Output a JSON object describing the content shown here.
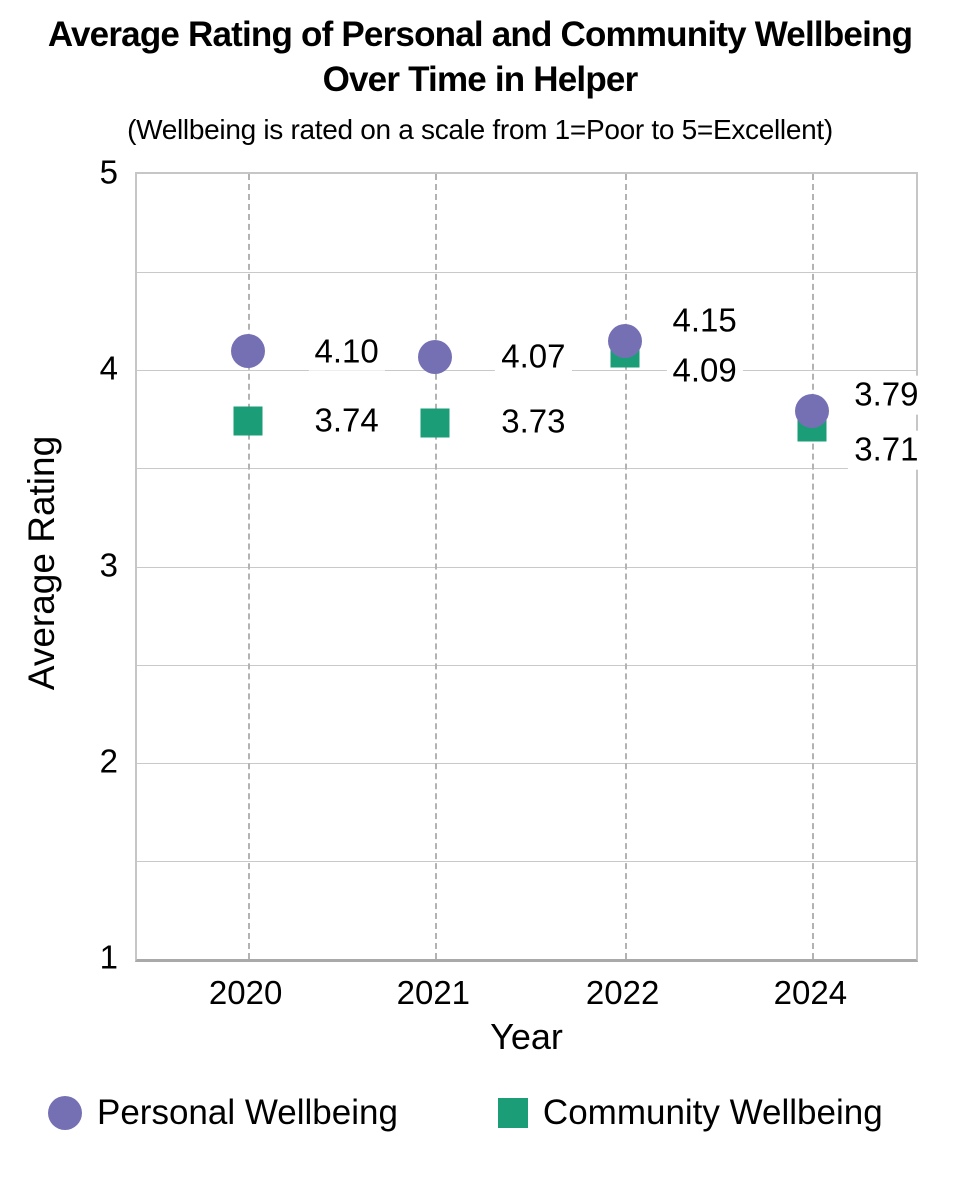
{
  "title": {
    "line1": "Average Rating of Personal and Community Wellbeing",
    "line2": "Over Time in Helper",
    "subtitle": "(Wellbeing is rated on a scale from 1=Poor to 5=Excellent)"
  },
  "chart_data": {
    "type": "scatter",
    "title": "Average Rating of Personal and Community Wellbeing Over Time in Helper",
    "subtitle": "(Wellbeing is rated on a scale from 1=Poor to 5=Excellent)",
    "categories": [
      "2020",
      "2021",
      "2022",
      "2024"
    ],
    "series": [
      {
        "name": "Personal Wellbeing",
        "marker": "circle",
        "color": "#7570B3",
        "values": [
          4.1,
          4.07,
          4.15,
          3.79
        ],
        "labels": [
          "4.10",
          "4.07",
          "4.15",
          "3.79"
        ],
        "label_offsets": [
          [
            99,
            1
          ],
          [
            98,
            0
          ],
          [
            80,
            -20
          ],
          [
            74,
            -16
          ]
        ]
      },
      {
        "name": "Community Wellbeing",
        "marker": "square",
        "color": "#1B9E77",
        "values": [
          3.74,
          3.73,
          4.09,
          3.71
        ],
        "labels": [
          "3.74",
          "3.73",
          "4.09",
          "3.71"
        ],
        "label_offsets": [
          [
            99,
            0
          ],
          [
            98,
            -1
          ],
          [
            80,
            18
          ],
          [
            74,
            23
          ]
        ]
      }
    ],
    "xlabel": "Year",
    "ylabel": "Average Rating",
    "ylim": [
      1,
      5
    ],
    "y_major_ticks": [
      5,
      4,
      3,
      2,
      1
    ],
    "gridline_step": 0.5,
    "grid": "horizontal solid every 0.5, vertical dashed at each category",
    "legend_position": "bottom-left",
    "grid_color": "#c9c9c9",
    "dashed_grid_color": "#b3b3b3",
    "label_background": "#ffffff"
  }
}
